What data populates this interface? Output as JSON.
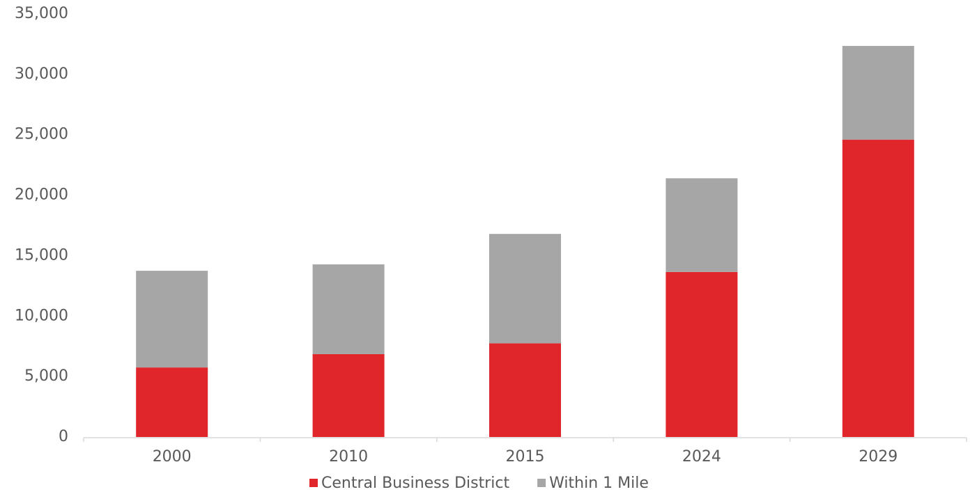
{
  "chart_data": {
    "type": "stacked_bar",
    "categories": [
      "2000",
      "2010",
      "2015",
      "2024",
      "2029"
    ],
    "series": [
      {
        "name": "Central Business District",
        "color": "#e0262b",
        "values": [
          5750,
          6850,
          7750,
          13650,
          24600
        ]
      },
      {
        "name": "Within 1 Mile",
        "color": "#a6a6a6",
        "values": [
          8000,
          7430,
          9050,
          7750,
          7750
        ]
      }
    ],
    "ylim": [
      0,
      35000
    ],
    "yticks": [
      0,
      {
        "value": 5000,
        "label": "5,000"
      },
      {
        "value": 10000,
        "label": "10,000"
      },
      {
        "value": 15000,
        "label": "15,000"
      },
      {
        "value": 20000,
        "label": "20,000"
      },
      {
        "value": 25000,
        "label": "25,000"
      },
      {
        "value": 30000,
        "label": "30,000"
      },
      {
        "value": 35000,
        "label": "35,000"
      }
    ],
    "grid": false,
    "legend": "bottom"
  }
}
